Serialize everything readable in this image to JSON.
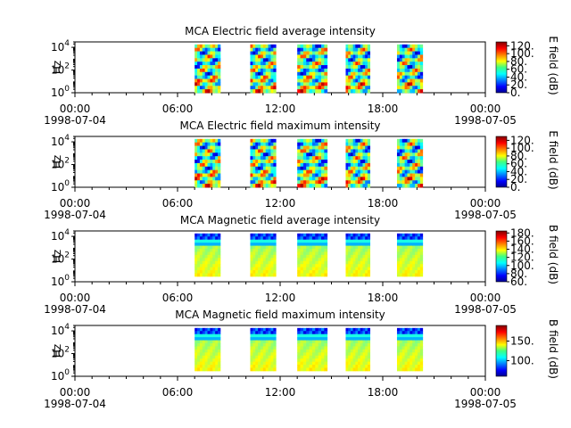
{
  "chart_data": [
    {
      "type": "heatmap",
      "title": "MCA  Electric field average intensity",
      "ylabel": "Hz",
      "yscale": "log",
      "ylim": [
        1,
        30000
      ],
      "yticks": [
        {
          "value": 1,
          "base": "10",
          "exp": "0"
        },
        {
          "value": 100,
          "base": "10",
          "exp": "2"
        },
        {
          "value": 10000,
          "base": "10",
          "exp": "4"
        }
      ],
      "xlim": [
        "1998-07-04 00:00",
        "1998-07-05 00:00"
      ],
      "xticks": [
        {
          "time": "00:00",
          "date": "1998-07-04"
        },
        {
          "time": "06:00",
          "date": ""
        },
        {
          "time": "12:00",
          "date": ""
        },
        {
          "time": "18:00",
          "date": ""
        },
        {
          "time": "00:00",
          "date": "1998-07-05"
        }
      ],
      "colorbar": {
        "label": "E field (dB)",
        "min": 0,
        "max": 130,
        "ticks": [
          "0.",
          "20.",
          "40.",
          "60.",
          "80.",
          "100.",
          "120."
        ],
        "tick_values": [
          0,
          20,
          40,
          60,
          80,
          100,
          120
        ]
      },
      "data_blocks": [
        {
          "start": "07:00",
          "end": "08:30",
          "level": "high"
        },
        {
          "start": "10:15",
          "end": "11:45",
          "level": "high"
        },
        {
          "start": "13:00",
          "end": "14:45",
          "level": "high"
        },
        {
          "start": "15:50",
          "end": "17:15",
          "level": "high"
        },
        {
          "start": "18:50",
          "end": "20:20",
          "level": "high"
        }
      ]
    },
    {
      "type": "heatmap",
      "title": "MCA  Electric field maximum intensity",
      "ylabel": "Hz",
      "yscale": "log",
      "ylim": [
        1,
        30000
      ],
      "yticks": [
        {
          "value": 1,
          "base": "10",
          "exp": "0"
        },
        {
          "value": 100,
          "base": "10",
          "exp": "2"
        },
        {
          "value": 10000,
          "base": "10",
          "exp": "4"
        }
      ],
      "xlim": [
        "1998-07-04 00:00",
        "1998-07-05 00:00"
      ],
      "xticks": [
        {
          "time": "00:00",
          "date": "1998-07-04"
        },
        {
          "time": "06:00",
          "date": ""
        },
        {
          "time": "12:00",
          "date": ""
        },
        {
          "time": "18:00",
          "date": ""
        },
        {
          "time": "00:00",
          "date": "1998-07-05"
        }
      ],
      "colorbar": {
        "label": "E field (dB)",
        "min": 0,
        "max": 130,
        "ticks": [
          "0.",
          "20.",
          "40.",
          "60.",
          "80.",
          "100.",
          "120."
        ],
        "tick_values": [
          0,
          20,
          40,
          60,
          80,
          100,
          120
        ]
      },
      "data_blocks": [
        {
          "start": "07:00",
          "end": "08:30",
          "level": "high"
        },
        {
          "start": "10:15",
          "end": "11:45",
          "level": "high"
        },
        {
          "start": "13:00",
          "end": "14:45",
          "level": "high"
        },
        {
          "start": "15:50",
          "end": "17:15",
          "level": "high"
        },
        {
          "start": "18:50",
          "end": "20:20",
          "level": "high"
        }
      ]
    },
    {
      "type": "heatmap",
      "title": "MCA  Magnetic field average intensity",
      "ylabel": "Hz",
      "yscale": "log",
      "ylim": [
        1,
        30000
      ],
      "yticks": [
        {
          "value": 1,
          "base": "10",
          "exp": "0"
        },
        {
          "value": 100,
          "base": "10",
          "exp": "2"
        },
        {
          "value": 10000,
          "base": "10",
          "exp": "4"
        }
      ],
      "xlim": [
        "1998-07-04 00:00",
        "1998-07-05 00:00"
      ],
      "xticks": [
        {
          "time": "00:00",
          "date": "1998-07-04"
        },
        {
          "time": "06:00",
          "date": ""
        },
        {
          "time": "12:00",
          "date": ""
        },
        {
          "time": "18:00",
          "date": ""
        },
        {
          "time": "00:00",
          "date": "1998-07-05"
        }
      ],
      "colorbar": {
        "label": "B field (dB)",
        "min": 60,
        "max": 185,
        "ticks": [
          "60.",
          "80.",
          "100.",
          "120.",
          "140.",
          "160.",
          "180."
        ],
        "tick_values": [
          60,
          80,
          100,
          120,
          140,
          160,
          180
        ]
      },
      "data_blocks": [
        {
          "start": "07:00",
          "end": "08:30",
          "level": "mag"
        },
        {
          "start": "10:15",
          "end": "11:45",
          "level": "mag"
        },
        {
          "start": "13:00",
          "end": "14:45",
          "level": "mag"
        },
        {
          "start": "15:50",
          "end": "17:15",
          "level": "mag"
        },
        {
          "start": "18:50",
          "end": "20:20",
          "level": "mag"
        }
      ]
    },
    {
      "type": "heatmap",
      "title": "MCA  Magnetic field maximum intensity",
      "ylabel": "Hz",
      "yscale": "log",
      "ylim": [
        1,
        30000
      ],
      "yticks": [
        {
          "value": 1,
          "base": "10",
          "exp": "0"
        },
        {
          "value": 100,
          "base": "10",
          "exp": "2"
        },
        {
          "value": 10000,
          "base": "10",
          "exp": "4"
        }
      ],
      "xlim": [
        "1998-07-04 00:00",
        "1998-07-05 00:00"
      ],
      "xticks": [
        {
          "time": "00:00",
          "date": "1998-07-04"
        },
        {
          "time": "06:00",
          "date": ""
        },
        {
          "time": "12:00",
          "date": ""
        },
        {
          "time": "18:00",
          "date": ""
        },
        {
          "time": "00:00",
          "date": "1998-07-05"
        }
      ],
      "colorbar": {
        "label": "B field (dB)",
        "min": 60,
        "max": 190,
        "ticks": [
          "100.",
          "150."
        ],
        "tick_values": [
          100,
          150
        ]
      },
      "data_blocks": [
        {
          "start": "07:00",
          "end": "08:30",
          "level": "mag"
        },
        {
          "start": "10:15",
          "end": "11:45",
          "level": "mag"
        },
        {
          "start": "13:00",
          "end": "14:45",
          "level": "mag"
        },
        {
          "start": "15:50",
          "end": "17:15",
          "level": "mag"
        },
        {
          "start": "18:50",
          "end": "20:20",
          "level": "mag"
        }
      ]
    }
  ]
}
